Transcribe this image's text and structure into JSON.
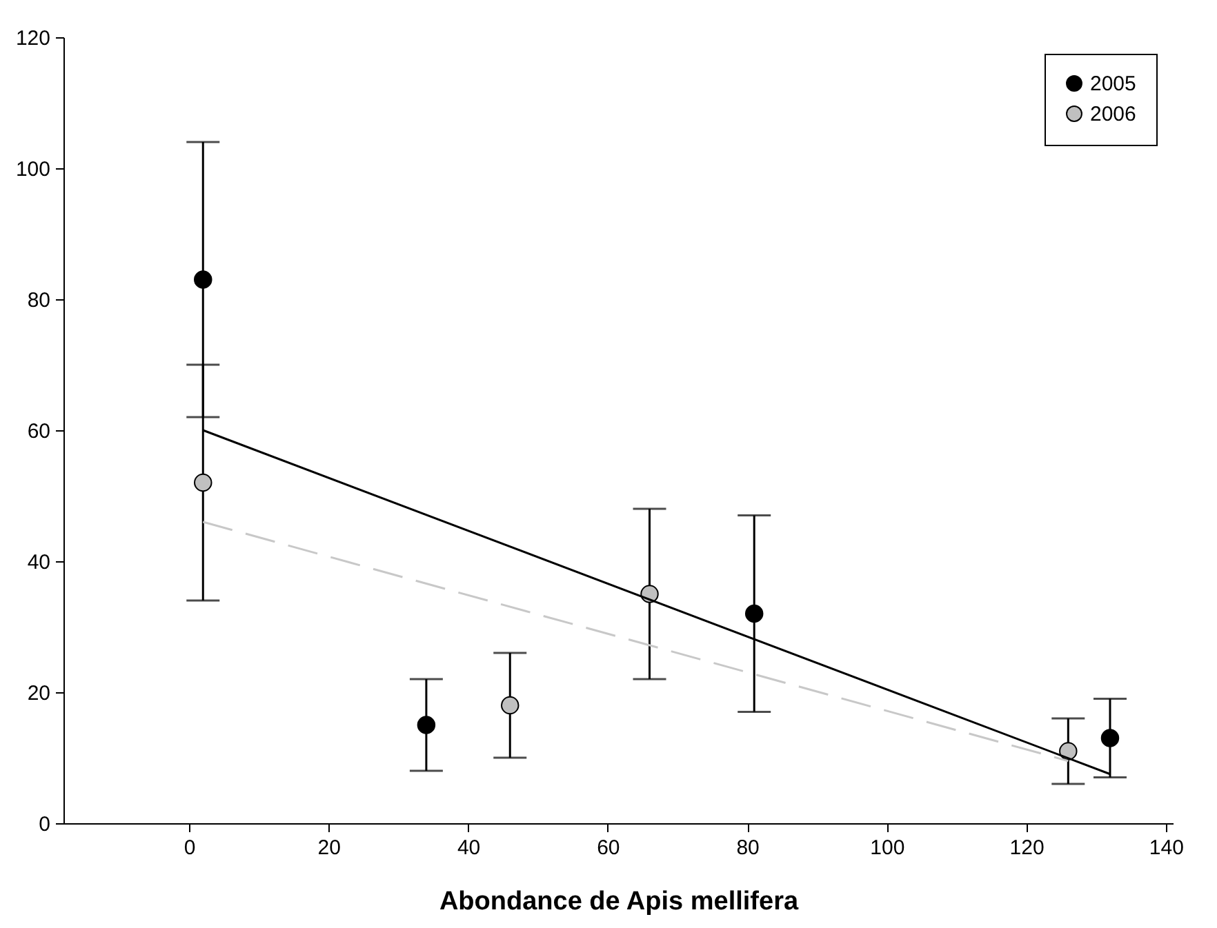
{
  "chart_data": {
    "type": "scatter",
    "xlabel": "Abondance de Apis mellifera",
    "xlim": [
      -18,
      141
    ],
    "xticks": [
      0,
      20,
      40,
      60,
      80,
      100,
      120,
      140
    ],
    "ylim": [
      0,
      120
    ],
    "yticks": [
      0,
      20,
      40,
      60,
      80,
      100,
      120
    ],
    "grid": false,
    "legend": "top right",
    "marker": "circle",
    "series": [
      {
        "name": "2005",
        "color": "#000000",
        "x": [
          2,
          34,
          81,
          132
        ],
        "values": [
          83,
          15,
          32,
          13
        ],
        "errors": [
          [
            62,
            104
          ],
          [
            8,
            22
          ],
          [
            17,
            47
          ],
          [
            7,
            19
          ]
        ]
      },
      {
        "name": "2006",
        "color": "#c0c0c0",
        "x": [
          2,
          46,
          66,
          126
        ],
        "values": [
          52,
          18,
          35,
          11
        ],
        "errors": [
          [
            34,
            70
          ],
          [
            10,
            26
          ],
          [
            22,
            48
          ],
          [
            6,
            16
          ]
        ]
      },
      {
        "type": "line",
        "color": "#000000",
        "line_style": "solid",
        "marker": "none",
        "x": [
          2,
          132
        ],
        "values": [
          60,
          7.5
        ]
      },
      {
        "type": "line",
        "color": "#c8c8c8",
        "line_style": "dashed",
        "marker": "none",
        "x": [
          2,
          126
        ],
        "values": [
          46,
          9.5
        ]
      }
    ]
  }
}
